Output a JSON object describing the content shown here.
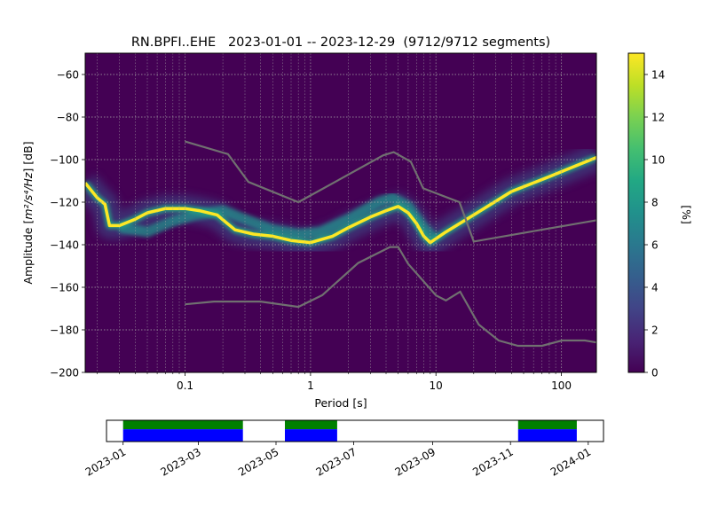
{
  "chart_data": [
    {
      "type": "heatmap",
      "title": "RN.BPFI..EHE   2023-01-01 -- 2023-12-29  (9712/9712 segments)",
      "xlabel": "Period [s]",
      "ylabel_main": "Amplitude [",
      "ylabel_unit": "m²/s⁴/Hz",
      "ylabel_tail": "] [dB]",
      "x_scale": "log",
      "xlim": [
        0.016,
        190
      ],
      "ylim": [
        -200,
        -50
      ],
      "x_ticks": [
        {
          "value": 0.1,
          "label": "0.1"
        },
        {
          "value": 1,
          "label": "1"
        },
        {
          "value": 10,
          "label": "10"
        },
        {
          "value": 100,
          "label": "100"
        }
      ],
      "y_ticks": [
        {
          "value": -60,
          "label": "−60"
        },
        {
          "value": -80,
          "label": "−80"
        },
        {
          "value": -100,
          "label": "−100"
        },
        {
          "value": -120,
          "label": "−120"
        },
        {
          "value": -140,
          "label": "−140"
        },
        {
          "value": -160,
          "label": "−160"
        },
        {
          "value": -180,
          "label": "−180"
        },
        {
          "value": -200,
          "label": "−200"
        }
      ],
      "grid": true,
      "colormap": "viridis",
      "colorbar": {
        "label": "[%]",
        "range": [
          0,
          15
        ],
        "ticks": [
          {
            "value": 0,
            "label": "0"
          },
          {
            "value": 2,
            "label": "2"
          },
          {
            "value": 4,
            "label": "4"
          },
          {
            "value": 6,
            "label": "6"
          },
          {
            "value": 8,
            "label": "8"
          },
          {
            "value": 10,
            "label": "10"
          },
          {
            "value": 12,
            "label": "12"
          },
          {
            "value": 14,
            "label": "14"
          }
        ]
      },
      "mode_curve": [
        [
          0.016,
          -111
        ],
        [
          0.02,
          -118
        ],
        [
          0.023,
          -121
        ],
        [
          0.025,
          -131
        ],
        [
          0.03,
          -131
        ],
        [
          0.04,
          -128
        ],
        [
          0.05,
          -125
        ],
        [
          0.07,
          -123
        ],
        [
          0.1,
          -123
        ],
        [
          0.13,
          -124
        ],
        [
          0.18,
          -126
        ],
        [
          0.25,
          -133
        ],
        [
          0.35,
          -135
        ],
        [
          0.5,
          -136
        ],
        [
          0.7,
          -138
        ],
        [
          1.0,
          -139
        ],
        [
          1.5,
          -136
        ],
        [
          2.0,
          -132
        ],
        [
          3.0,
          -127
        ],
        [
          4.0,
          -124
        ],
        [
          5.0,
          -122
        ],
        [
          6.0,
          -125
        ],
        [
          7.0,
          -130
        ],
        [
          8.0,
          -136
        ],
        [
          9.0,
          -139
        ],
        [
          12,
          -134
        ],
        [
          20,
          -126
        ],
        [
          40,
          -115
        ],
        [
          80,
          -108
        ],
        [
          190,
          -99
        ]
      ],
      "secondary_curve": [
        [
          0.03,
          -132
        ],
        [
          0.05,
          -134
        ],
        [
          0.08,
          -129
        ],
        [
          0.12,
          -126
        ],
        [
          0.2,
          -124
        ],
        [
          0.3,
          -128
        ],
        [
          0.5,
          -133
        ],
        [
          0.8,
          -135
        ],
        [
          1.2,
          -134
        ],
        [
          2.0,
          -128
        ],
        [
          3.5,
          -120
        ],
        [
          4.5,
          -118
        ],
        [
          6.0,
          -122
        ],
        [
          8.0,
          -132
        ],
        [
          10,
          -138
        ]
      ],
      "noise_model_high": [
        [
          0.1,
          -91.5
        ],
        [
          0.22,
          -97.4
        ],
        [
          0.32,
          -110.5
        ],
        [
          0.8,
          -120
        ],
        [
          3.8,
          -98
        ],
        [
          4.6,
          -96.5
        ],
        [
          6.3,
          -101
        ],
        [
          7.9,
          -113.5
        ],
        [
          15.4,
          -120
        ],
        [
          20,
          -138.5
        ],
        [
          190,
          -128.5
        ]
      ],
      "noise_model_low": [
        [
          0.1,
          -168
        ],
        [
          0.17,
          -166.7
        ],
        [
          0.4,
          -166.7
        ],
        [
          0.8,
          -169.2
        ],
        [
          1.24,
          -163.7
        ],
        [
          2.4,
          -148.6
        ],
        [
          4.3,
          -141.1
        ],
        [
          5.0,
          -141.1
        ],
        [
          6.0,
          -149
        ],
        [
          10,
          -163.8
        ],
        [
          12,
          -166.2
        ],
        [
          15.6,
          -162.1
        ],
        [
          21.9,
          -177.5
        ],
        [
          31.6,
          -185
        ],
        [
          45,
          -187.5
        ],
        [
          70,
          -187.5
        ],
        [
          101,
          -185
        ],
        [
          154,
          -185
        ],
        [
          190,
          -185.9
        ]
      ]
    },
    {
      "type": "timeline",
      "x_start": "2023-01-01",
      "x_end": "2024-01-01",
      "xlim": [
        "2022-12-19",
        "2024-01-13"
      ],
      "ticks": [
        "2023-01",
        "2023-03",
        "2023-05",
        "2023-07",
        "2023-09",
        "2023-11",
        "2024-01"
      ],
      "colors": {
        "top": "#008000",
        "bottom": "#0000ff"
      },
      "segments": [
        {
          "start": "2023-01-01",
          "end": "2023-04-05"
        },
        {
          "start": "2023-05-08",
          "end": "2023-06-18"
        },
        {
          "start": "2023-11-07",
          "end": "2023-12-23"
        }
      ]
    }
  ]
}
